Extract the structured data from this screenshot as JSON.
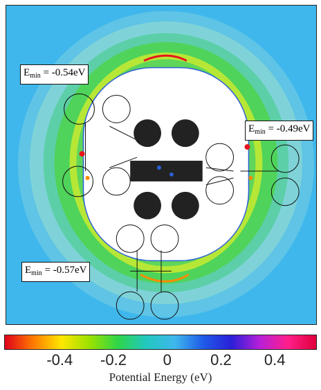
{
  "labels": {
    "top_left": {
      "prefix": "E",
      "sub": "min",
      "value": " = -0.54eV"
    },
    "right": {
      "prefix": "E",
      "sub": "min",
      "value": " = -0.49eV"
    },
    "bottom_left": {
      "prefix": "E",
      "sub": "min",
      "value": " = -0.57eV"
    }
  },
  "colorbar": {
    "ticks": [
      "-0.4",
      "-0.2",
      "0",
      "0.2",
      "0.4"
    ],
    "tick_values": [
      -0.4,
      -0.2,
      0,
      0.2,
      0.4
    ],
    "range": [
      -0.55,
      0.5
    ],
    "label": "Potential Energy (eV)",
    "colors": [
      "#e0001b",
      "#ff7a00",
      "#ffe600",
      "#9be200",
      "#2fd54a",
      "#22c8c0",
      "#3fb7ec",
      "#1f5ce8",
      "#2a1fd8",
      "#b61fd8",
      "#ff1f8c",
      "#e0003a"
    ]
  },
  "colors": {
    "background": "#3fb7ec",
    "cavity": "#ffffff",
    "ring_outer": "#86d5d9",
    "ring_green": "#4fd35a",
    "ring_yellow": "#c6ea2c",
    "hotspot": "#e8141c",
    "molecule": "#111111"
  }
}
